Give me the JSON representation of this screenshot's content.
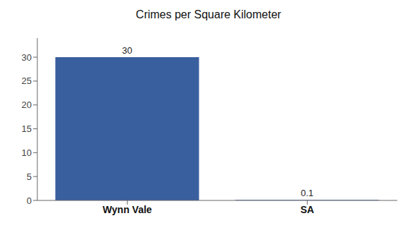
{
  "chart_data": {
    "type": "bar",
    "title": "Crimes per Square Kilometer",
    "categories": [
      "Wynn Vale",
      "SA"
    ],
    "values": [
      30,
      0.1
    ],
    "color": "#3a5f9f",
    "ylim": [
      0,
      34
    ],
    "yticks": [
      0,
      5,
      10,
      15,
      20,
      25,
      30
    ],
    "grid": false,
    "data_labels": true
  }
}
